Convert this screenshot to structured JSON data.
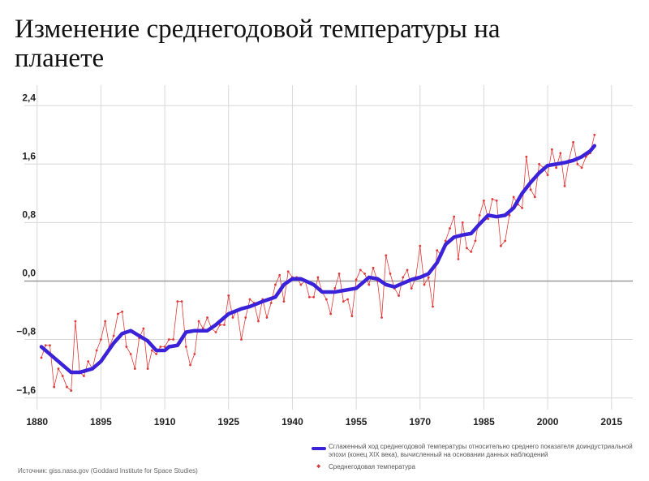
{
  "chart_data": {
    "type": "line",
    "title": "Изменение среднегодовой температуры на планете",
    "source": "Источник: giss.nasa.gov (Goddard Institute for Space Studies)",
    "xlim": [
      1877,
      2020
    ],
    "xticks": [
      1880,
      1895,
      1910,
      1925,
      1940,
      1955,
      1970,
      1985,
      2000,
      2015
    ],
    "ylim": [
      -1.76,
      2.68
    ],
    "yticks": [
      {
        "value": -1.6,
        "label": "−1,6"
      },
      {
        "value": -0.8,
        "label": "−0,8"
      },
      {
        "value": 0,
        "label": "0,0"
      },
      {
        "value": 0.8,
        "label": "0,8"
      },
      {
        "value": 1.6,
        "label": "1,6"
      },
      {
        "value": 2.4,
        "label": "2,4"
      }
    ],
    "grid": true,
    "series": [
      {
        "name": "Сглаженный ход среднегодовой температуры относительно среднего показателя доиндустриальной эпохи (конец XIX века), вычисленный на основании данных наблюдений",
        "color": "#3a22d8",
        "markers": false,
        "x": [
          1881,
          1885,
          1888,
          1890,
          1893,
          1895,
          1898,
          1900,
          1902,
          1904,
          1906,
          1908,
          1910,
          1911,
          1913,
          1915,
          1917,
          1920,
          1922,
          1925,
          1928,
          1930,
          1933,
          1936,
          1938,
          1940,
          1942,
          1945,
          1947,
          1950,
          1952,
          1955,
          1958,
          1960,
          1962,
          1964,
          1966,
          1968,
          1970,
          1972,
          1974,
          1976,
          1978,
          1980,
          1982,
          1984,
          1986,
          1988,
          1990,
          1992,
          1994,
          1996,
          1998,
          2000,
          2002,
          2004,
          2006,
          2008,
          2010,
          2011
        ],
        "values": [
          -0.9,
          -1.1,
          -1.25,
          -1.25,
          -1.2,
          -1.1,
          -0.85,
          -0.72,
          -0.68,
          -0.75,
          -0.82,
          -0.95,
          -0.95,
          -0.9,
          -0.88,
          -0.7,
          -0.68,
          -0.68,
          -0.6,
          -0.45,
          -0.38,
          -0.35,
          -0.28,
          -0.22,
          -0.05,
          0.03,
          0.03,
          -0.05,
          -0.15,
          -0.15,
          -0.13,
          -0.1,
          0.05,
          0.03,
          -0.05,
          -0.08,
          -0.03,
          0.02,
          0.05,
          0.1,
          0.25,
          0.5,
          0.6,
          0.63,
          0.65,
          0.78,
          0.9,
          0.88,
          0.9,
          1.0,
          1.2,
          1.35,
          1.48,
          1.58,
          1.6,
          1.62,
          1.65,
          1.7,
          1.78,
          1.85
        ]
      },
      {
        "name": "Среднегодовая температура",
        "color": "#e03a3a",
        "markers": true,
        "x": [
          1881,
          1882,
          1883,
          1884,
          1885,
          1886,
          1887,
          1888,
          1889,
          1890,
          1891,
          1892,
          1893,
          1894,
          1895,
          1896,
          1897,
          1898,
          1899,
          1900,
          1901,
          1902,
          1903,
          1904,
          1905,
          1906,
          1907,
          1908,
          1909,
          1910,
          1911,
          1912,
          1913,
          1914,
          1915,
          1916,
          1917,
          1918,
          1919,
          1920,
          1921,
          1922,
          1923,
          1924,
          1925,
          1926,
          1927,
          1928,
          1929,
          1930,
          1931,
          1932,
          1933,
          1934,
          1935,
          1936,
          1937,
          1938,
          1939,
          1940,
          1941,
          1942,
          1943,
          1944,
          1945,
          1946,
          1947,
          1948,
          1949,
          1950,
          1951,
          1952,
          1953,
          1954,
          1955,
          1956,
          1957,
          1958,
          1959,
          1960,
          1961,
          1962,
          1963,
          1964,
          1965,
          1966,
          1967,
          1968,
          1969,
          1970,
          1971,
          1972,
          1973,
          1974,
          1975,
          1976,
          1977,
          1978,
          1979,
          1980,
          1981,
          1982,
          1983,
          1984,
          1985,
          1986,
          1987,
          1988,
          1989,
          1990,
          1991,
          1992,
          1993,
          1994,
          1995,
          1996,
          1997,
          1998,
          1999,
          2000,
          2001,
          2002,
          2003,
          2004,
          2005,
          2006,
          2007,
          2008,
          2009,
          2010,
          2011
        ],
        "values": [
          -1.05,
          -0.88,
          -0.88,
          -1.45,
          -1.2,
          -1.3,
          -1.45,
          -1.5,
          -0.55,
          -1.25,
          -1.3,
          -1.1,
          -1.2,
          -0.95,
          -0.8,
          -0.55,
          -0.9,
          -0.75,
          -0.45,
          -0.42,
          -0.9,
          -1.0,
          -1.2,
          -0.78,
          -0.65,
          -1.2,
          -0.95,
          -1.0,
          -0.9,
          -0.9,
          -0.8,
          -0.8,
          -0.28,
          -0.28,
          -0.9,
          -1.15,
          -1.0,
          -0.55,
          -0.65,
          -0.5,
          -0.65,
          -0.7,
          -0.6,
          -0.6,
          -0.2,
          -0.5,
          -0.4,
          -0.8,
          -0.5,
          -0.25,
          -0.3,
          -0.55,
          -0.25,
          -0.5,
          -0.3,
          -0.05,
          0.08,
          -0.28,
          0.13,
          0.05,
          0.05,
          -0.05,
          0.0,
          -0.22,
          -0.22,
          0.05,
          -0.15,
          -0.25,
          -0.45,
          -0.1,
          0.1,
          -0.28,
          -0.25,
          -0.48,
          0.02,
          0.15,
          0.1,
          -0.05,
          0.18,
          0.0,
          -0.5,
          0.35,
          0.1,
          -0.1,
          -0.2,
          0.05,
          0.15,
          -0.1,
          0.05,
          0.48,
          -0.05,
          0.05,
          -0.35,
          0.42,
          0.35,
          0.55,
          0.72,
          0.88,
          0.3,
          0.8,
          0.45,
          0.4,
          0.55,
          0.9,
          1.1,
          0.85,
          1.12,
          1.1,
          0.48,
          0.55,
          0.9,
          1.15,
          1.05,
          1.0,
          1.7,
          1.25,
          1.15,
          1.6,
          1.55,
          1.45,
          1.8,
          1.55,
          1.75,
          1.3,
          1.65,
          1.9,
          1.6,
          1.55,
          1.7,
          1.75,
          2.0
        ]
      }
    ]
  }
}
